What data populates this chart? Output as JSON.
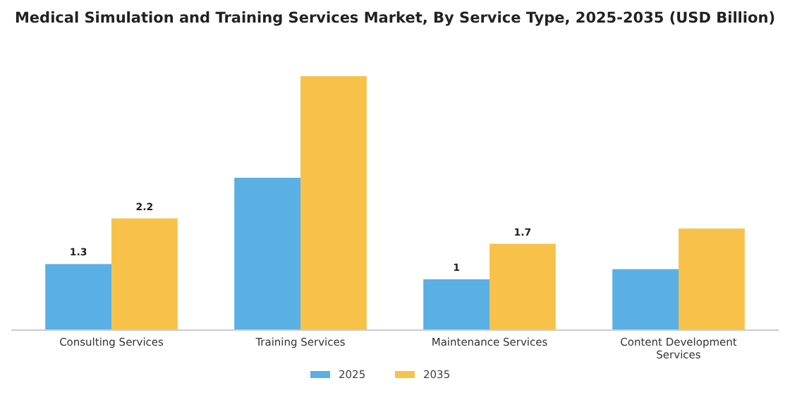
{
  "chart_data": {
    "type": "bar",
    "title": "Medical Simulation and Training Services Market, By Service Type, 2025-2035 (USD Billion)",
    "categories": [
      "Consulting Services",
      "Training Services",
      "Maintenance Services",
      "Content Development Services"
    ],
    "series": [
      {
        "name": "2025",
        "color": "#5ab0e4",
        "values": [
          1.3,
          3.0,
          1,
          1.2
        ],
        "value_labels": [
          "1.3",
          null,
          "1",
          null
        ]
      },
      {
        "name": "2035",
        "color": "#f8c24a",
        "values": [
          2.2,
          5.0,
          1.7,
          2.0
        ],
        "value_labels": [
          "2.2",
          null,
          "1.7",
          null
        ]
      }
    ],
    "legend": "bottom"
  }
}
